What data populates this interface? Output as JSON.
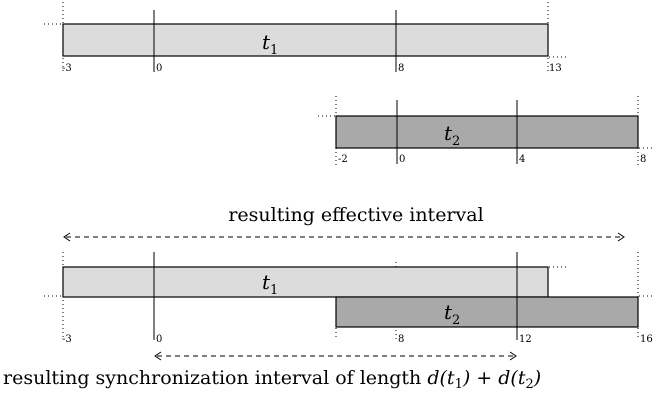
{
  "tasks": {
    "t1_top": {
      "name": "t",
      "sub": "1",
      "start": -3,
      "end": 13,
      "ticks": [
        "-3",
        "0",
        "8",
        "13"
      ]
    },
    "t2_top": {
      "name": "t",
      "sub": "2",
      "start": -2,
      "end": 8,
      "ticks": [
        "-2",
        "0",
        "4",
        "8"
      ]
    }
  },
  "combined": {
    "effective_label": "resulting effective interval",
    "t1": {
      "name": "t",
      "sub": "1"
    },
    "t2": {
      "name": "t",
      "sub": "2"
    },
    "ticks": [
      "-3",
      "0",
      "8",
      "12",
      "16"
    ],
    "sync_label_prefix": "resulting synchronization interval of length ",
    "sync_label_math_a": "d(t",
    "sync_label_sub_a": "1",
    "sync_label_math_b": ") + d(t",
    "sync_label_sub_b": "2",
    "sync_label_math_c": ")"
  }
}
